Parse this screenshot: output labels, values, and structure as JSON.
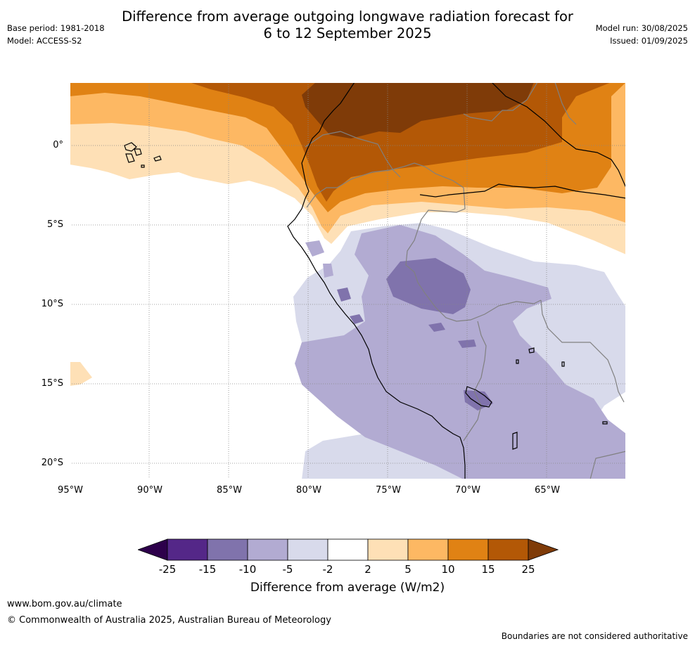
{
  "header": {
    "title_line1": "Difference from average outgoing longwave radiation forecast for",
    "title_line2": "6 to 12 September 2025",
    "base_period": "Base period: 1981-2018",
    "model": "Model: ACCESS-S2",
    "model_run": "Model run: 30/08/2025",
    "issued": "Issued: 01/09/2025"
  },
  "map": {
    "lat_labels": [
      "0°",
      "5°S",
      "10°S",
      "15°S",
      "20°S"
    ],
    "lon_labels": [
      "95°W",
      "90°W",
      "85°W",
      "80°W",
      "75°W",
      "70°W",
      "65°W"
    ],
    "colors": {
      "p25": "#7f3b08",
      "p15": "#b35806",
      "p10": "#e08214",
      "p5": "#fdb863",
      "p2": "#fee0b6",
      "zero": "#ffffff",
      "m2": "#d8daeb",
      "m5": "#b2abd2",
      "m10": "#8073ac",
      "m15": "#542788",
      "m25": "#2d004b",
      "coast": "#000000",
      "border": "#808080",
      "grid": "#888888"
    }
  },
  "colorbar": {
    "ticks": [
      "-25",
      "-15",
      "-10",
      "-5",
      "-2",
      "2",
      "5",
      "10",
      "15",
      "25"
    ],
    "colors": [
      "#542788",
      "#8073ac",
      "#b2abd2",
      "#d8daeb",
      "#ffffff",
      "#fee0b6",
      "#fdb863",
      "#e08214",
      "#b35806"
    ],
    "extend_low_color": "#2d004b",
    "extend_high_color": "#7f3b08",
    "label": "Difference from average (W/m2)"
  },
  "footer": {
    "website": "www.bom.gov.au/climate",
    "copyright": "© Commonwealth of Australia 2025, Australian Bureau of Meteorology",
    "disclaimer": "Boundaries are not considered authoritative"
  }
}
